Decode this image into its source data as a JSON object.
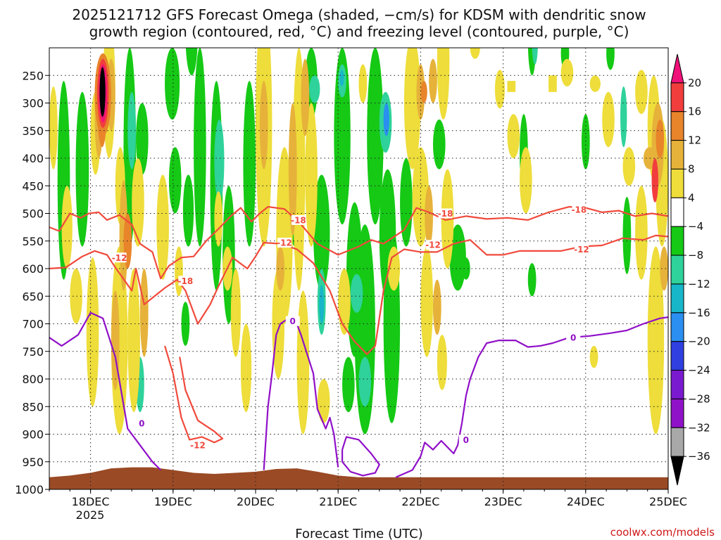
{
  "chart_data": {
    "type": "heatmap",
    "title_line1": "2025121712 GFS Forecast Omega (shaded, −cm/s) for KDSM with dendritic snow",
    "title_line2": "growth region (contoured, red, °C) and freezing level (contoured, purple, °C)",
    "xlabel": "Forecast Time (UTC)",
    "x_ticks": [
      "18DEC",
      "19DEC",
      "20DEC",
      "21DEC",
      "22DEC",
      "23DEC",
      "24DEC",
      "25DEC"
    ],
    "x_subtick": "2025",
    "x_range_days": [
      17.5,
      25.0
    ],
    "y_ticks": [
      250,
      300,
      350,
      400,
      450,
      500,
      550,
      600,
      650,
      700,
      750,
      800,
      850,
      900,
      950,
      1000
    ],
    "y_range_hpa": [
      200,
      1000
    ],
    "colorbar": {
      "labels": [
        "20",
        "16",
        "12",
        "8",
        "4",
        "−4",
        "−8",
        "−12",
        "−16",
        "−20",
        "−24",
        "−28",
        "−32",
        "−36"
      ],
      "colors": [
        "#f0127a",
        "#f23d3d",
        "#e8842a",
        "#e6b23a",
        "#eedd3a",
        "#ffffff",
        "#15c915",
        "#2ed29a",
        "#18b6c9",
        "#2a8ff0",
        "#2f3fe0",
        "#7a1ad0",
        "#9012c8",
        "#a8a8a8",
        "#000000"
      ]
    },
    "contours": {
      "dgz_minus18_label": "-18",
      "dgz_minus12_label": "-12",
      "freezing_label": "0",
      "dgz_minus18": [
        [
          17.5,
          525
        ],
        [
          17.62,
          532
        ],
        [
          17.75,
          500
        ],
        [
          17.88,
          508
        ],
        [
          17.98,
          500
        ],
        [
          18.1,
          498
        ],
        [
          18.2,
          512
        ],
        [
          18.35,
          503
        ],
        [
          18.5,
          520
        ],
        [
          18.6,
          555
        ],
        [
          18.75,
          570
        ],
        [
          18.85,
          618
        ],
        [
          18.95,
          595
        ],
        [
          19.1,
          580
        ],
        [
          19.25,
          578
        ],
        [
          19.4,
          550
        ],
        [
          19.55,
          528
        ],
        [
          19.7,
          505
        ],
        [
          19.82,
          490
        ],
        [
          19.95,
          515
        ],
        [
          20.05,
          500
        ],
        [
          20.15,
          488
        ],
        [
          20.35,
          492
        ],
        [
          20.55,
          520
        ],
        [
          20.75,
          555
        ],
        [
          21.0,
          575
        ],
        [
          21.25,
          560
        ],
        [
          21.4,
          548
        ],
        [
          21.55,
          555
        ],
        [
          21.65,
          545
        ],
        [
          21.8,
          530
        ],
        [
          21.95,
          490
        ],
        [
          22.1,
          498
        ],
        [
          22.3,
          512
        ],
        [
          22.55,
          505
        ],
        [
          22.8,
          510
        ],
        [
          23.05,
          508
        ],
        [
          23.3,
          512
        ],
        [
          23.55,
          498
        ],
        [
          23.8,
          488
        ],
        [
          24.0,
          490
        ],
        [
          24.2,
          498
        ],
        [
          24.4,
          495
        ],
        [
          24.6,
          505
        ],
        [
          24.8,
          500
        ],
        [
          25.0,
          505
        ]
      ],
      "dgz_minus12": [
        [
          17.5,
          600
        ],
        [
          17.7,
          598
        ],
        [
          17.9,
          578
        ],
        [
          18.05,
          568
        ],
        [
          18.2,
          575
        ],
        [
          18.3,
          598
        ],
        [
          18.5,
          640
        ],
        [
          18.55,
          600
        ],
        [
          18.65,
          665
        ],
        [
          18.9,
          635
        ],
        [
          19.05,
          620
        ],
        [
          19.15,
          640
        ],
        [
          19.3,
          700
        ],
        [
          19.45,
          665
        ],
        [
          19.55,
          632
        ],
        [
          19.72,
          580
        ],
        [
          19.9,
          600
        ],
        [
          20.0,
          578
        ],
        [
          20.1,
          553
        ],
        [
          20.3,
          555
        ],
        [
          20.5,
          565
        ],
        [
          20.7,
          590
        ],
        [
          20.9,
          640
        ],
        [
          21.05,
          700
        ],
        [
          21.2,
          732
        ],
        [
          21.35,
          755
        ],
        [
          21.45,
          740
        ],
        [
          21.55,
          640
        ],
        [
          21.65,
          580
        ],
        [
          21.8,
          565
        ],
        [
          22.0,
          570
        ],
        [
          22.2,
          570
        ],
        [
          22.4,
          555
        ],
        [
          22.6,
          548
        ],
        [
          22.8,
          575
        ],
        [
          23.0,
          575
        ],
        [
          23.2,
          568
        ],
        [
          23.45,
          568
        ],
        [
          23.7,
          568
        ],
        [
          23.95,
          560
        ],
        [
          24.2,
          558
        ],
        [
          24.45,
          545
        ],
        [
          24.7,
          548
        ],
        [
          24.85,
          540
        ],
        [
          25.0,
          542
        ]
      ],
      "dgz_minus12_low": [
        [
          18.9,
          740
        ],
        [
          19.0,
          790
        ],
        [
          19.1,
          870
        ],
        [
          19.2,
          910
        ],
        [
          19.35,
          905
        ],
        [
          19.5,
          915
        ],
        [
          19.6,
          908
        ],
        [
          19.5,
          895
        ],
        [
          19.3,
          875
        ],
        [
          19.15,
          820
        ],
        [
          19.08,
          760
        ]
      ],
      "freezing": [
        [
          17.5,
          725
        ],
        [
          17.65,
          740
        ],
        [
          17.85,
          720
        ],
        [
          18.0,
          680
        ],
        [
          18.15,
          690
        ],
        [
          18.3,
          760
        ],
        [
          18.45,
          890
        ],
        [
          18.6,
          920
        ],
        [
          18.75,
          950
        ],
        [
          18.85,
          965
        ]
      ],
      "freezing_mid": [
        [
          20.1,
          965
        ],
        [
          20.15,
          850
        ],
        [
          20.2,
          790
        ],
        [
          20.25,
          720
        ],
        [
          20.3,
          700
        ],
        [
          20.4,
          690
        ],
        [
          20.5,
          700
        ],
        [
          20.55,
          720
        ],
        [
          20.7,
          790
        ],
        [
          20.75,
          855
        ],
        [
          20.85,
          890
        ],
        [
          20.9,
          870
        ],
        [
          20.95,
          900
        ],
        [
          21.0,
          960
        ]
      ],
      "freezing_loop": [
        [
          21.05,
          928
        ],
        [
          21.1,
          905
        ],
        [
          21.25,
          910
        ],
        [
          21.4,
          935
        ],
        [
          21.5,
          955
        ],
        [
          21.45,
          970
        ],
        [
          21.3,
          975
        ],
        [
          21.15,
          968
        ],
        [
          21.05,
          950
        ],
        [
          21.05,
          928
        ]
      ],
      "freezing_right": [
        [
          21.7,
          978
        ],
        [
          21.9,
          965
        ],
        [
          22.0,
          940
        ],
        [
          22.05,
          915
        ],
        [
          22.15,
          928
        ],
        [
          22.25,
          912
        ],
        [
          22.4,
          935
        ],
        [
          22.45,
          920
        ],
        [
          22.5,
          880
        ],
        [
          22.55,
          830
        ],
        [
          22.6,
          800
        ],
        [
          22.7,
          760
        ],
        [
          22.8,
          735
        ],
        [
          22.95,
          730
        ],
        [
          23.15,
          730
        ],
        [
          23.3,
          742
        ],
        [
          23.45,
          740
        ],
        [
          23.6,
          735
        ],
        [
          23.8,
          725
        ],
        [
          24.05,
          722
        ],
        [
          24.3,
          717
        ],
        [
          24.5,
          712
        ],
        [
          24.7,
          700
        ],
        [
          24.9,
          690
        ],
        [
          25.0,
          688
        ]
      ]
    },
    "credit": "coolwx.com/models"
  }
}
